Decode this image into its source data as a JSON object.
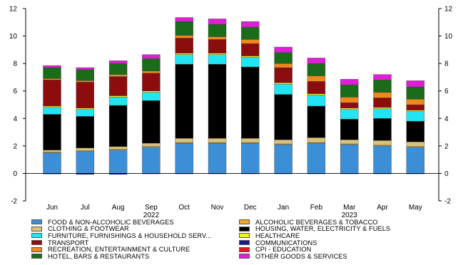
{
  "chart_data": {
    "type": "bar",
    "stacked": true,
    "title": "",
    "xlabel": "",
    "ylabel": "",
    "ylim": [
      -2,
      12
    ],
    "yticks": [
      -2,
      0,
      2,
      4,
      6,
      8,
      10,
      12
    ],
    "y_axis_both_sides": true,
    "grid": false,
    "legend_position": "bottom",
    "categories": [
      "Jun",
      "Jul",
      "Aug",
      "Sep",
      "Oct",
      "Nov",
      "Dec",
      "Jan",
      "Feb",
      "Mar",
      "Apr",
      "May"
    ],
    "year_labels": [
      {
        "text": "2022",
        "category_index": 3
      },
      {
        "text": "2023",
        "category_index": 9
      }
    ],
    "series": [
      {
        "name": "FOOD & NON-ALCOHOLIC BEVERAGES",
        "color": "#3c8fd6",
        "values": [
          1.5,
          1.6,
          1.7,
          1.9,
          2.2,
          2.2,
          2.2,
          2.1,
          2.2,
          2.1,
          2.0,
          1.9
        ]
      },
      {
        "name": "ALCOHOLIC BEVERAGES & TOBACCO",
        "color": "#f5a623",
        "values": [
          0.05,
          0.05,
          0.05,
          0.05,
          0.05,
          0.05,
          0.05,
          0.05,
          0.05,
          0.05,
          0.05,
          0.05
        ]
      },
      {
        "name": "CLOTHING & FOOTWEAR",
        "color": "#d9c27a",
        "values": [
          0.15,
          0.2,
          0.2,
          0.25,
          0.3,
          0.3,
          0.3,
          0.3,
          0.35,
          0.3,
          0.35,
          0.35
        ]
      },
      {
        "name": "HOUSING, WATER, ELECTRICITY & FUELS",
        "color": "#000000",
        "values": [
          2.6,
          2.3,
          3.0,
          3.1,
          5.4,
          5.4,
          5.2,
          3.3,
          2.3,
          1.5,
          1.6,
          1.5
        ]
      },
      {
        "name": "FURNITURE, FURNISHINGS & HOUSEHOLD SERV...",
        "color": "#22e4f2",
        "values": [
          0.5,
          0.5,
          0.6,
          0.6,
          0.7,
          0.7,
          0.7,
          0.75,
          0.8,
          0.7,
          0.7,
          0.7
        ]
      },
      {
        "name": "HEALTHCARE",
        "color": "#f2f21c",
        "values": [
          0.1,
          0.1,
          0.1,
          0.1,
          0.1,
          0.1,
          0.1,
          0.1,
          0.1,
          0.1,
          0.1,
          0.1
        ]
      },
      {
        "name": "TRANSPORT",
        "color": "#8b0d0d",
        "values": [
          1.9,
          1.9,
          1.4,
          1.3,
          1.1,
          1.0,
          0.9,
          1.1,
          0.9,
          0.4,
          0.7,
          0.4
        ]
      },
      {
        "name": "COMMUNICATIONS",
        "color": "#1a1a8c",
        "values": [
          0,
          0,
          0,
          0,
          0,
          0,
          0,
          0,
          0,
          0,
          0,
          0
        ]
      },
      {
        "name": "RECREATION, ENTERTAINMENT & CULTURE",
        "color": "#f0891c",
        "values": [
          0.1,
          0.1,
          0.15,
          0.15,
          0.2,
          0.2,
          0.3,
          0.3,
          0.4,
          0.4,
          0.4,
          0.4
        ]
      },
      {
        "name": "CPI - EDUCATION",
        "color": "#e8131c",
        "values": [
          0,
          0,
          0,
          0,
          0,
          0,
          0,
          0,
          0,
          0,
          0,
          0
        ]
      },
      {
        "name": "HOTEL, BARS & RESTAURANTS",
        "color": "#1a6b1a",
        "values": [
          0.8,
          0.8,
          0.8,
          0.9,
          1.0,
          0.9,
          0.9,
          0.8,
          0.9,
          0.9,
          0.9,
          0.9
        ]
      },
      {
        "name": "OTHER GOODS & SERVICES",
        "color": "#e01ed8",
        "values": [
          0.15,
          0.15,
          0.2,
          0.3,
          0.3,
          0.4,
          0.4,
          0.4,
          0.4,
          0.4,
          0.4,
          0.45
        ]
      }
    ],
    "negative_stack": [
      {
        "color": "#1a1a8c",
        "values": [
          -0.05,
          -0.08,
          -0.08,
          -0.03,
          -0.03,
          -0.03,
          -0.02,
          -0.02,
          -0.02,
          -0.02,
          -0.02,
          -0.02
        ]
      }
    ],
    "legend_order": [
      "FOOD & NON-ALCOHOLIC BEVERAGES",
      "ALCOHOLIC BEVERAGES & TOBACCO",
      "CLOTHING & FOOTWEAR",
      "HOUSING, WATER, ELECTRICITY & FUELS",
      "FURNITURE, FURNISHINGS & HOUSEHOLD SERV...",
      "HEALTHCARE",
      "TRANSPORT",
      "COMMUNICATIONS",
      "RECREATION, ENTERTAINMENT & CULTURE",
      "CPI - EDUCATION",
      "HOTEL, BARS & RESTAURANTS",
      "OTHER GOODS & SERVICES"
    ]
  }
}
